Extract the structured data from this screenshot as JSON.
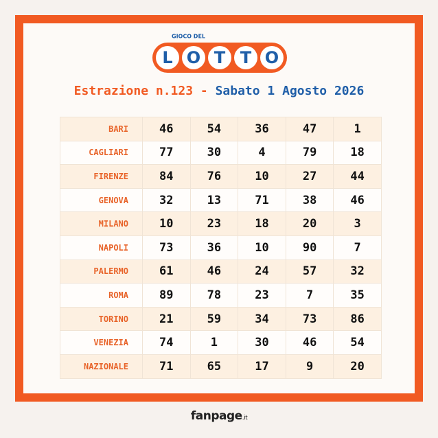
{
  "logo": {
    "top": "GIOCO DEL",
    "letters": [
      "L",
      "O",
      "T",
      "T",
      "O"
    ]
  },
  "header": {
    "title": "Estrazione n.123 - ",
    "date": "Sabato 1 Agosto 2026"
  },
  "table": {
    "rows": [
      [
        "BARI",
        46,
        54,
        36,
        47,
        1
      ],
      [
        "CAGLIARI",
        77,
        30,
        4,
        79,
        18
      ],
      [
        "FIRENZE",
        84,
        76,
        10,
        27,
        44
      ],
      [
        "GENOVA",
        32,
        13,
        71,
        38,
        46
      ],
      [
        "MILANO",
        10,
        23,
        18,
        20,
        3
      ],
      [
        "NAPOLI",
        73,
        36,
        10,
        90,
        7
      ],
      [
        "PALERMO",
        61,
        46,
        24,
        57,
        32
      ],
      [
        "ROMA",
        89,
        78,
        23,
        7,
        35
      ],
      [
        "TORINO",
        21,
        59,
        34,
        73,
        86
      ],
      [
        "VENEZIA",
        74,
        1,
        30,
        46,
        54
      ],
      [
        "NAZIONALE",
        71,
        65,
        17,
        9,
        20
      ]
    ]
  },
  "footer": {
    "brand": "fanpage",
    "suffix": ".it"
  }
}
